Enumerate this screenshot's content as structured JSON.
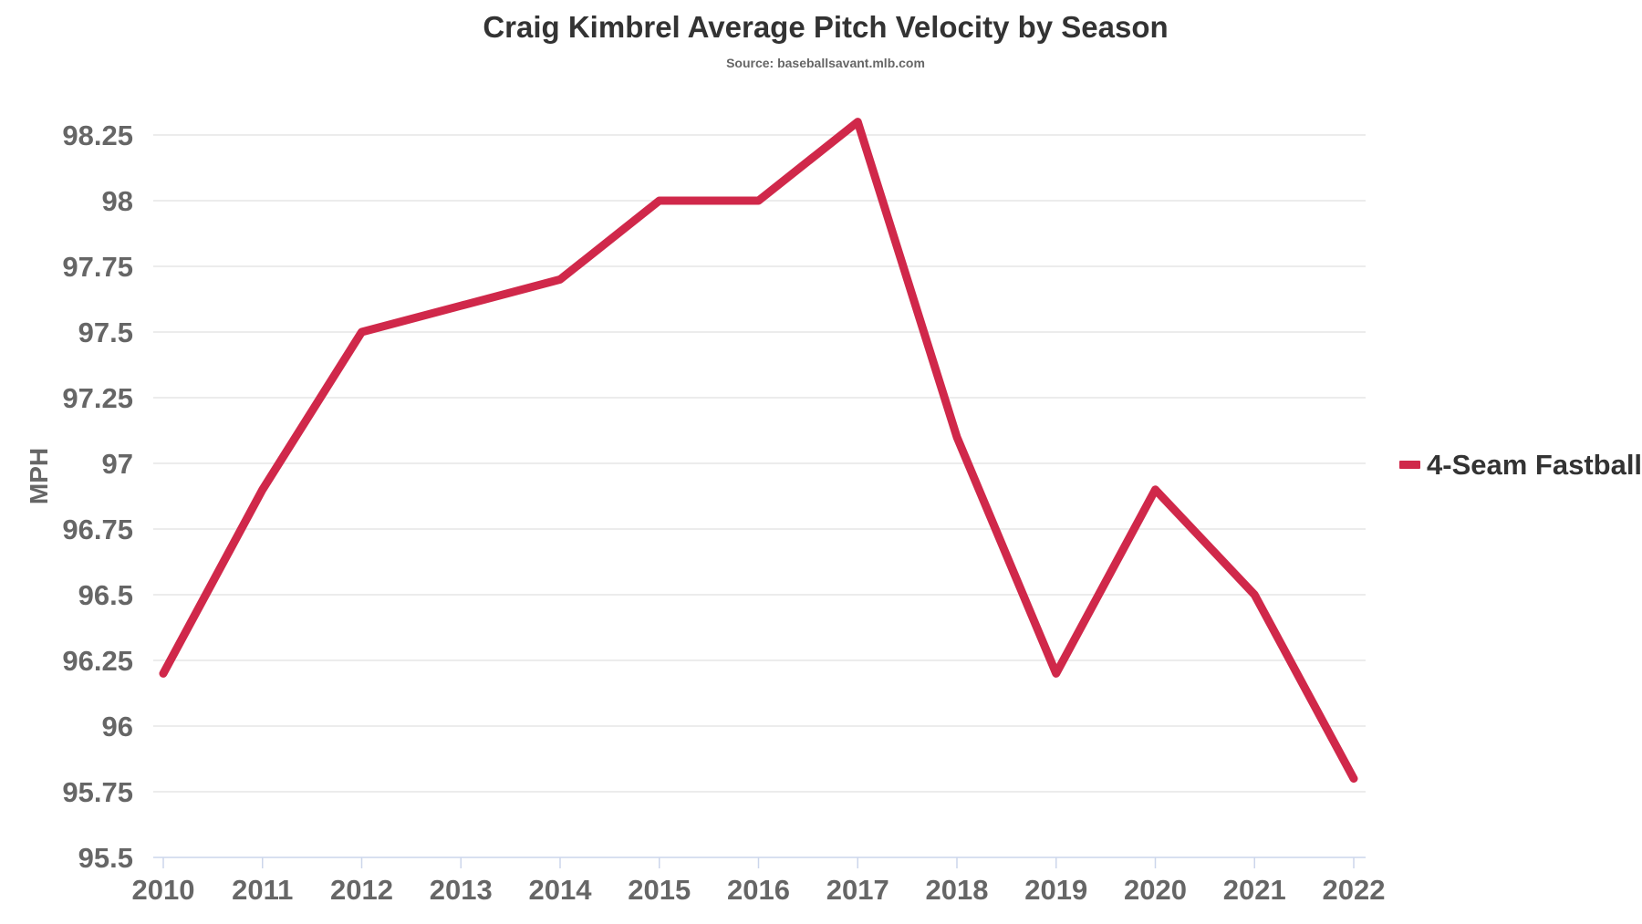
{
  "chart_data": {
    "type": "line",
    "title": "Craig Kimbrel Average Pitch Velocity by Season",
    "subtitle": "Source: baseballsavant.mlb.com",
    "xlabel": "",
    "ylabel": "MPH",
    "x": [
      2010,
      2011,
      2012,
      2013,
      2014,
      2015,
      2016,
      2017,
      2018,
      2019,
      2020,
      2021,
      2022
    ],
    "x_tick_labels": [
      "2010",
      "2011",
      "2012",
      "2013",
      "2014",
      "2015",
      "2016",
      "2017",
      "2018",
      "2019",
      "2020",
      "2021",
      "2022"
    ],
    "ylim": [
      95.5,
      98.3
    ],
    "y_ticks": [
      95.5,
      95.75,
      96,
      96.25,
      96.5,
      96.75,
      97,
      97.25,
      97.5,
      97.75,
      98,
      98.25
    ],
    "y_tick_labels": [
      "95.5",
      "95.75",
      "96",
      "96.25",
      "96.5",
      "96.75",
      "97",
      "97.25",
      "97.5",
      "97.75",
      "98",
      "98.25"
    ],
    "grid": true,
    "legend_position": "right",
    "series": [
      {
        "name": "4-Seam Fastball",
        "color": "#d0284a",
        "values": [
          96.2,
          96.9,
          97.5,
          97.6,
          97.7,
          98.0,
          98.0,
          98.3,
          97.1,
          96.2,
          96.9,
          96.5,
          95.8
        ]
      }
    ]
  }
}
